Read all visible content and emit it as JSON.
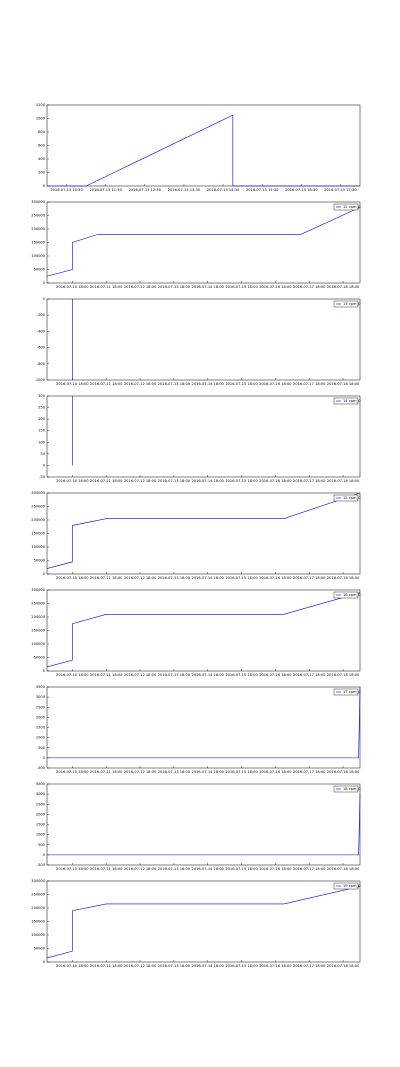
{
  "chart_data": [
    {
      "type": "line",
      "xlim": [
        "2016-07-15 10:00",
        "2016-07-15 18:00"
      ],
      "xticks": [
        "2016-07-15 10:30",
        "2016-07-15 11:30",
        "2016-07-15 12:30",
        "2016-07-15 13:30",
        "2016-07-15 14:30",
        "2016-07-15 15:30",
        "2016-07-15 16:30",
        "2016-07-15 17:30"
      ],
      "ylim": [
        0,
        1200
      ],
      "yticks": [
        0,
        200,
        400,
        600,
        800,
        1000,
        1200
      ],
      "x": [
        "2016-07-15 10:00",
        "2016-07-15 11:00",
        "2016-07-15 14:45",
        "2016-07-15 14:45",
        "2016-07-15 18:00"
      ],
      "series": [
        {
          "name": "value",
          "color": "#0000ff",
          "values": [
            0,
            0,
            1050,
            0,
            0
          ]
        }
      ]
    },
    {
      "type": "line",
      "xlim": [
        "2016-07-10 00:00",
        "2016-07-19 06:00"
      ],
      "xticks": [
        "2016-07-10 18:00",
        "2016-07-11 18:00",
        "2016-07-12 18:00",
        "2016-07-13 18:00",
        "2016-07-14 18:00",
        "2016-07-15 18:00",
        "2016-07-16 18:00",
        "2016-07-17 18:00",
        "2016-07-18 18:00"
      ],
      "ylim": [
        0,
        300000
      ],
      "yticks": [
        0,
        50000,
        100000,
        150000,
        200000,
        250000,
        300000
      ],
      "x": [
        "2016-07-10 00:00",
        "2016-07-10 18:00",
        "2016-07-10 18:00",
        "2016-07-11 12:00",
        "2016-07-17 12:00",
        "2016-07-19 06:00"
      ],
      "series": [
        {
          "name": "12 cpm_0",
          "color": "#0000ff",
          "values": [
            25000,
            50000,
            150000,
            180000,
            180000,
            280000
          ]
        }
      ],
      "legend": "upper right"
    },
    {
      "type": "line",
      "xlim": [
        "2016-07-10 00:00",
        "2016-07-19 06:00"
      ],
      "xticks": [
        "2016-07-10 18:00",
        "2016-07-11 18:00",
        "2016-07-12 18:00",
        "2016-07-13 18:00",
        "2016-07-14 18:00",
        "2016-07-15 18:00",
        "2016-07-16 18:00",
        "2016-07-17 18:00",
        "2016-07-18 18:00"
      ],
      "ylim": [
        -1000,
        0
      ],
      "yticks": [
        -1000,
        -800,
        -600,
        -400,
        -200,
        0
      ],
      "x": [
        "2016-07-10 18:00",
        "2016-07-10 18:00",
        "2016-07-10 18:00"
      ],
      "series": [
        {
          "name": "13 cpm_0",
          "color": "#0000ff",
          "values": [
            0,
            -1000,
            0
          ]
        }
      ],
      "legend": "upper right"
    },
    {
      "type": "line",
      "xlim": [
        "2016-07-10 00:00",
        "2016-07-19 06:00"
      ],
      "xticks": [
        "2016-07-10 18:00",
        "2016-07-11 18:00",
        "2016-07-12 18:00",
        "2016-07-13 18:00",
        "2016-07-14 18:00",
        "2016-07-15 18:00",
        "2016-07-16 18:00",
        "2016-07-17 18:00",
        "2016-07-18 18:00"
      ],
      "ylim": [
        -50,
        300
      ],
      "yticks": [
        -50,
        0,
        50,
        100,
        150,
        200,
        250,
        300
      ],
      "x": [
        "2016-07-10 18:00",
        "2016-07-10 18:00",
        "2016-07-10 18:00"
      ],
      "series": [
        {
          "name": "14 cpm_0",
          "color": "#0000ff",
          "values": [
            0,
            300,
            0
          ]
        }
      ],
      "legend": "upper right"
    },
    {
      "type": "line",
      "xlim": [
        "2016-07-10 00:00",
        "2016-07-19 06:00"
      ],
      "xticks": [
        "2016-07-10 18:00",
        "2016-07-11 18:00",
        "2016-07-12 18:00",
        "2016-07-13 18:00",
        "2016-07-14 18:00",
        "2016-07-15 18:00",
        "2016-07-16 18:00",
        "2016-07-17 18:00",
        "2016-07-18 18:00"
      ],
      "ylim": [
        0,
        300000
      ],
      "yticks": [
        0,
        50000,
        100000,
        150000,
        200000,
        250000,
        300000
      ],
      "x": [
        "2016-07-10 00:00",
        "2016-07-10 18:00",
        "2016-07-10 18:00",
        "2016-07-11 18:00",
        "2016-07-17 00:00",
        "2016-07-19 06:00"
      ],
      "series": [
        {
          "name": "15 cpm_0",
          "color": "#0000ff",
          "values": [
            20000,
            45000,
            180000,
            205000,
            205000,
            300000
          ]
        }
      ],
      "legend": "upper right"
    },
    {
      "type": "line",
      "xlim": [
        "2016-07-10 00:00",
        "2016-07-19 06:00"
      ],
      "xticks": [
        "2016-07-10 18:00",
        "2016-07-11 18:00",
        "2016-07-12 18:00",
        "2016-07-13 18:00",
        "2016-07-14 18:00",
        "2016-07-15 18:00",
        "2016-07-16 18:00",
        "2016-07-17 18:00",
        "2016-07-18 18:00"
      ],
      "ylim": [
        0,
        300000
      ],
      "yticks": [
        0,
        50000,
        100000,
        150000,
        200000,
        250000,
        300000
      ],
      "x": [
        "2016-07-10 00:00",
        "2016-07-10 18:00",
        "2016-07-10 18:00",
        "2016-07-11 18:00",
        "2016-07-17 00:00",
        "2016-07-19 06:00"
      ],
      "series": [
        {
          "name": "16 cpm_0",
          "color": "#0000ff",
          "values": [
            15000,
            40000,
            175000,
            210000,
            210000,
            290000
          ]
        }
      ],
      "legend": "upper right"
    },
    {
      "type": "line",
      "xlim": [
        "2016-07-10 00:00",
        "2016-07-19 06:00"
      ],
      "xticks": [
        "2016-07-10 18:00",
        "2016-07-11 18:00",
        "2016-07-12 18:00",
        "2016-07-13 18:00",
        "2016-07-14 18:00",
        "2016-07-15 18:00",
        "2016-07-16 18:00",
        "2016-07-17 18:00",
        "2016-07-18 18:00"
      ],
      "ylim": [
        -500,
        3500
      ],
      "yticks": [
        -500,
        0,
        500,
        1000,
        1500,
        2000,
        2500,
        3000,
        3500
      ],
      "x": [
        "2016-07-10 00:00",
        "2016-07-19 05:00",
        "2016-07-19 06:00"
      ],
      "series": [
        {
          "name": "17 cpm_0",
          "color": "#0000ff",
          "values": [
            0,
            0,
            3500
          ]
        }
      ],
      "legend": "upper right"
    },
    {
      "type": "line",
      "xlim": [
        "2016-07-10 00:00",
        "2016-07-19 06:00"
      ],
      "xticks": [
        "2016-07-10 18:00",
        "2016-07-11 18:00",
        "2016-07-12 18:00",
        "2016-07-13 18:00",
        "2016-07-14 18:00",
        "2016-07-15 18:00",
        "2016-07-16 18:00",
        "2016-07-17 18:00",
        "2016-07-18 18:00"
      ],
      "ylim": [
        -500,
        3500
      ],
      "yticks": [
        -500,
        0,
        500,
        1000,
        1500,
        2000,
        2500,
        3000,
        3500
      ],
      "x": [
        "2016-07-10 00:00",
        "2016-07-19 05:00",
        "2016-07-19 06:00"
      ],
      "series": [
        {
          "name": "18 cpm_0",
          "color": "#0000ff",
          "values": [
            0,
            0,
            3000
          ]
        }
      ],
      "legend": "upper right"
    },
    {
      "type": "line",
      "xlim": [
        "2016-07-10 00:00",
        "2016-07-19 06:00"
      ],
      "xticks": [
        "2016-07-10 18:00",
        "2016-07-11 18:00",
        "2016-07-12 18:00",
        "2016-07-13 18:00",
        "2016-07-14 18:00",
        "2016-07-15 18:00",
        "2016-07-16 18:00",
        "2016-07-17 18:00",
        "2016-07-18 18:00"
      ],
      "ylim": [
        0,
        300000
      ],
      "yticks": [
        0,
        50000,
        100000,
        150000,
        200000,
        250000,
        300000
      ],
      "x": [
        "2016-07-10 00:00",
        "2016-07-10 18:00",
        "2016-07-10 18:00",
        "2016-07-11 18:00",
        "2016-07-17 00:00",
        "2016-07-19 06:00"
      ],
      "series": [
        {
          "name": "19 cpm_0",
          "color": "#0000ff",
          "values": [
            15000,
            40000,
            190000,
            215000,
            215000,
            280000
          ]
        }
      ],
      "legend": "upper right"
    }
  ]
}
